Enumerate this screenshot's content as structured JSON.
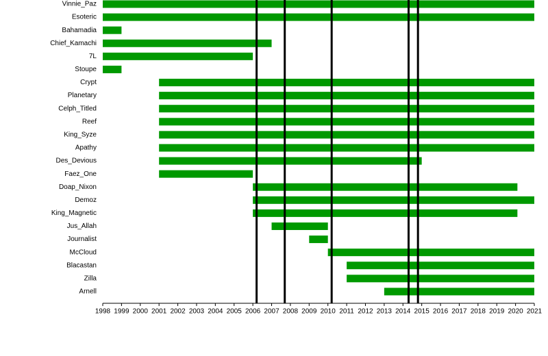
{
  "chart_data": {
    "type": "gantt",
    "categories": [
      "Vinnie_Paz",
      "Esoteric",
      "Bahamadia",
      "Chief_Kamachi",
      "7L",
      "Stoupe",
      "Crypt",
      "Planetary",
      "Celph_Titled",
      "Reef",
      "King_Syze",
      "Apathy",
      "Des_Devious",
      "Faez_One",
      "Doap_Nixon",
      "Demoz",
      "King_Magnetic",
      "Jus_Allah",
      "Journalist",
      "McCloud",
      "Blacastan",
      "Zilla",
      "Arnell"
    ],
    "start": [
      1998,
      1998,
      1998,
      1998,
      1998,
      1998,
      2001,
      2001,
      2001,
      2001,
      2001,
      2001,
      2001,
      2001,
      2006,
      2006,
      2006,
      2007,
      2009,
      2010,
      2011,
      2011,
      2013
    ],
    "end": [
      2021,
      2021,
      1999,
      2007,
      2006,
      1999,
      2021,
      2021,
      2021,
      2021,
      2021,
      2021,
      2015,
      2006,
      2020.1,
      2021,
      2020.1,
      2010,
      2010,
      2021,
      2021,
      2021,
      2021
    ],
    "color": "#009900",
    "vlines": [
      2006.2,
      2007.7,
      2010.2,
      2014.3,
      2014.8
    ],
    "vline_color": "#000000",
    "xlim": [
      1998,
      2021
    ],
    "xticks": [
      1998,
      1999,
      2000,
      2001,
      2002,
      2003,
      2004,
      2005,
      2006,
      2007,
      2008,
      2009,
      2010,
      2011,
      2012,
      2013,
      2014,
      2015,
      2016,
      2017,
      2018,
      2019,
      2020,
      2021
    ]
  }
}
